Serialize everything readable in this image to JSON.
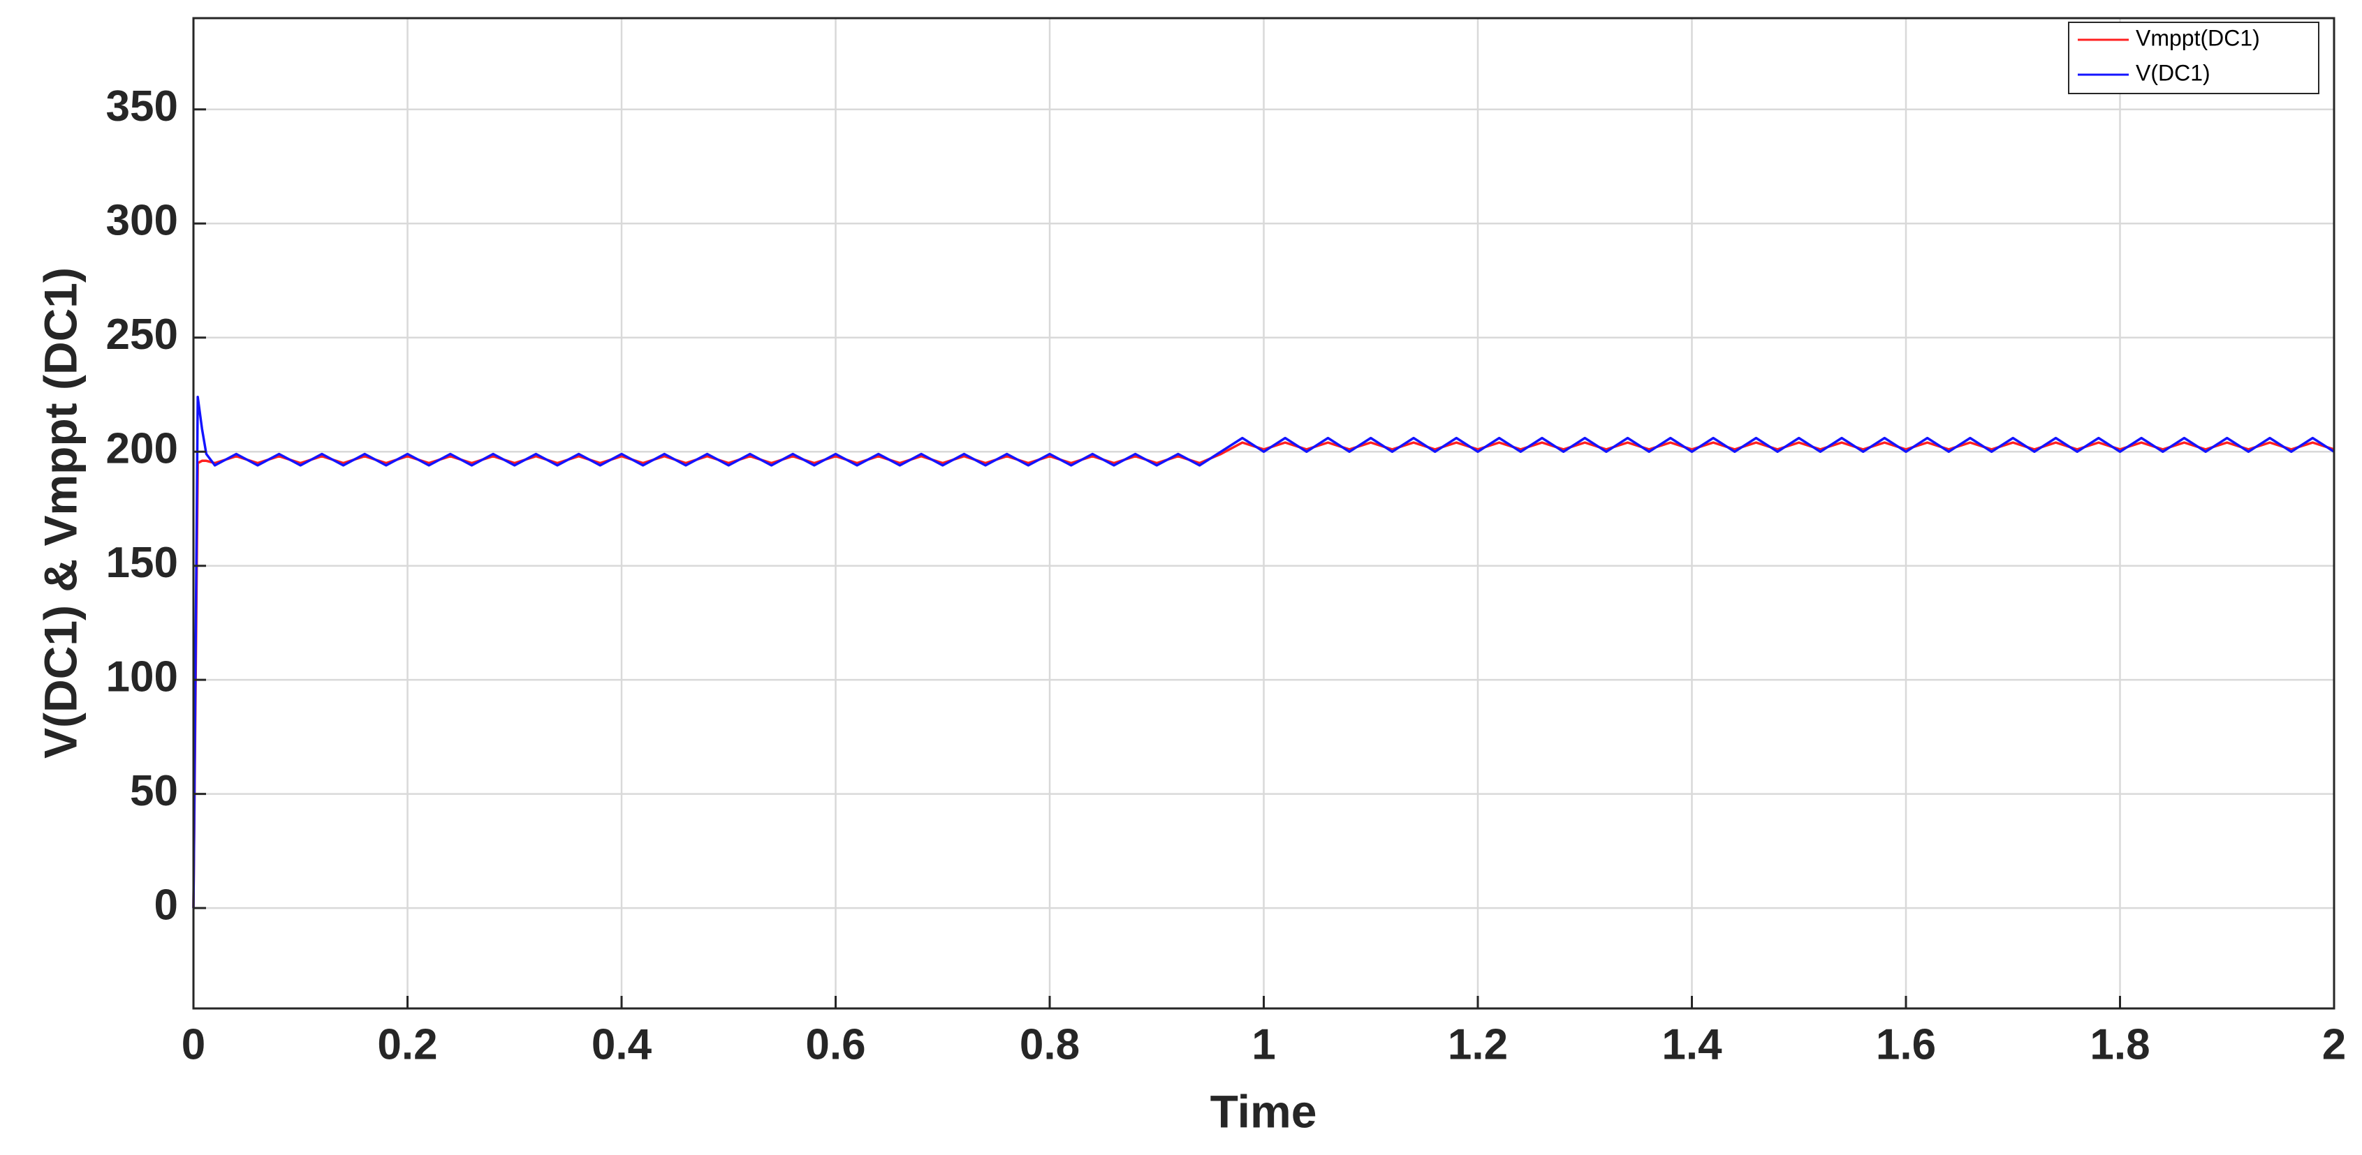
{
  "chart_data": {
    "type": "line",
    "xlabel": "Time",
    "ylabel": "V(DC1) & Vmppt (DC1)",
    "xlim": [
      0,
      2
    ],
    "ylim": [
      -44,
      390
    ],
    "xticks": [
      0,
      0.2,
      0.4,
      0.6,
      0.8,
      1,
      1.2,
      1.4,
      1.6,
      1.8,
      2
    ],
    "yticks": [
      0,
      50,
      100,
      150,
      200,
      250,
      300,
      350
    ],
    "grid": true,
    "legend": "upper right",
    "x": [
      0,
      0.004,
      0.008,
      0.012,
      0.02,
      0.04,
      0.06,
      0.08,
      0.1,
      0.12,
      0.14,
      0.16,
      0.18,
      0.2,
      0.22,
      0.24,
      0.26,
      0.28,
      0.3,
      0.32,
      0.34,
      0.36,
      0.38,
      0.4,
      0.42,
      0.44,
      0.46,
      0.48,
      0.5,
      0.52,
      0.54,
      0.56,
      0.58,
      0.6,
      0.62,
      0.64,
      0.66,
      0.68,
      0.7,
      0.72,
      0.74,
      0.76,
      0.78,
      0.8,
      0.82,
      0.84,
      0.86,
      0.88,
      0.9,
      0.92,
      0.94,
      0.96,
      0.98,
      1,
      1.02,
      1.04,
      1.06,
      1.08,
      1.1,
      1.12,
      1.14,
      1.16,
      1.18,
      1.2,
      1.22,
      1.24,
      1.26,
      1.28,
      1.3,
      1.32,
      1.34,
      1.36,
      1.38,
      1.4,
      1.42,
      1.44,
      1.46,
      1.48,
      1.5,
      1.52,
      1.54,
      1.56,
      1.58,
      1.6,
      1.62,
      1.64,
      1.66,
      1.68,
      1.7,
      1.72,
      1.74,
      1.76,
      1.78,
      1.8,
      1.82,
      1.84,
      1.86,
      1.88,
      1.9,
      1.92,
      1.94,
      1.96,
      1.98,
      2
    ],
    "series": [
      {
        "name": "Vmppt(DC1)",
        "color": "#ff2020",
        "values": [
          0,
          195,
          196,
          196,
          195,
          198,
          195,
          198,
          195,
          198,
          195,
          198,
          195,
          198,
          195,
          198,
          195,
          198,
          195,
          198,
          195,
          198,
          195,
          198,
          195,
          198,
          195,
          198,
          195,
          198,
          195,
          198,
          195,
          198,
          195,
          198,
          195,
          198,
          195,
          198,
          195,
          198,
          195,
          198,
          195,
          198,
          195,
          198,
          195,
          198,
          195,
          199,
          204,
          201,
          204,
          201,
          204,
          201,
          204,
          201,
          204,
          201,
          204,
          201,
          204,
          201,
          204,
          201,
          204,
          201,
          204,
          201,
          204,
          201,
          204,
          201,
          204,
          201,
          204,
          201,
          204,
          201,
          204,
          201,
          204,
          201,
          204,
          201,
          204,
          201,
          204,
          201,
          204,
          201,
          204,
          201,
          204,
          201,
          204,
          201,
          204,
          201,
          204,
          201
        ]
      },
      {
        "name": "V(DC1)",
        "color": "#1414ff",
        "values": [
          0,
          224,
          210,
          199,
          194,
          199,
          194,
          199,
          194,
          199,
          194,
          199,
          194,
          199,
          194,
          199,
          194,
          199,
          194,
          199,
          194,
          199,
          194,
          199,
          194,
          199,
          194,
          199,
          194,
          199,
          194,
          199,
          194,
          199,
          194,
          199,
          194,
          199,
          194,
          199,
          194,
          199,
          194,
          199,
          194,
          199,
          194,
          199,
          194,
          199,
          194,
          200,
          206,
          200,
          206,
          200,
          206,
          200,
          206,
          200,
          206,
          200,
          206,
          200,
          206,
          200,
          206,
          200,
          206,
          200,
          206,
          200,
          206,
          200,
          206,
          200,
          206,
          200,
          206,
          200,
          206,
          200,
          206,
          200,
          206,
          200,
          206,
          200,
          206,
          200,
          206,
          200,
          206,
          200,
          206,
          200,
          206,
          200,
          206,
          200,
          206,
          200,
          206,
          200
        ]
      }
    ]
  }
}
